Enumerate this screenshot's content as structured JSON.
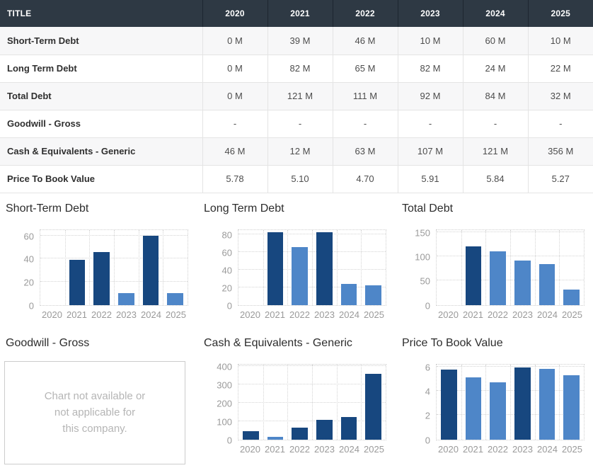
{
  "colors": {
    "header_bg": "#2e3944",
    "bar_dark": "#17477f",
    "bar_light": "#4e86c8",
    "row_alt": "#f7f7f8",
    "axis_text": "#9a9a9a",
    "na_text": "#b5b5b5"
  },
  "table": {
    "title_header": "TITLE",
    "year_headers": [
      "2020",
      "2021",
      "2022",
      "2023",
      "2024",
      "2025"
    ],
    "rows": [
      {
        "label": "Short-Term Debt",
        "values": [
          "0 M",
          "39 M",
          "46 M",
          "10 M",
          "60 M",
          "10 M"
        ]
      },
      {
        "label": "Long Term Debt",
        "values": [
          "0 M",
          "82 M",
          "65 M",
          "82 M",
          "24 M",
          "22 M"
        ]
      },
      {
        "label": "Total Debt",
        "values": [
          "0 M",
          "121 M",
          "111 M",
          "92 M",
          "84 M",
          "32 M"
        ]
      },
      {
        "label": "Goodwill - Gross",
        "values": [
          "-",
          "-",
          "-",
          "-",
          "-",
          "-"
        ]
      },
      {
        "label": "Cash & Equivalents - Generic",
        "values": [
          "46 M",
          "12 M",
          "63 M",
          "107 M",
          "121 M",
          "356 M"
        ]
      },
      {
        "label": "Price To Book Value",
        "values": [
          "5.78",
          "5.10",
          "4.70",
          "5.91",
          "5.84",
          "5.27"
        ]
      }
    ]
  },
  "chart_data": [
    {
      "type": "bar",
      "title": "Short-Term Debt",
      "available": true,
      "categories": [
        "2020",
        "2021",
        "2022",
        "2023",
        "2024",
        "2025"
      ],
      "values": [
        0,
        39,
        46,
        10,
        60,
        10
      ],
      "bar_colors": [
        null,
        "dark",
        "dark",
        "light",
        "dark",
        "light"
      ],
      "yticks": [
        0,
        20,
        40,
        60
      ],
      "ylim": [
        0,
        65
      ],
      "grid": true,
      "legend": false
    },
    {
      "type": "bar",
      "title": "Long Term Debt",
      "available": true,
      "categories": [
        "2020",
        "2021",
        "2022",
        "2023",
        "2024",
        "2025"
      ],
      "values": [
        0,
        82,
        65,
        82,
        24,
        22
      ],
      "bar_colors": [
        null,
        "dark",
        "light",
        "dark",
        "light",
        "light"
      ],
      "yticks": [
        0,
        20,
        40,
        60,
        80
      ],
      "ylim": [
        0,
        85
      ],
      "grid": true,
      "legend": false
    },
    {
      "type": "bar",
      "title": "Total Debt",
      "available": true,
      "categories": [
        "2020",
        "2021",
        "2022",
        "2023",
        "2024",
        "2025"
      ],
      "values": [
        0,
        121,
        111,
        92,
        84,
        32
      ],
      "bar_colors": [
        null,
        "dark",
        "light",
        "light",
        "light",
        "light"
      ],
      "yticks": [
        0,
        50,
        100,
        150
      ],
      "ylim": [
        0,
        155
      ],
      "grid": true,
      "legend": false
    },
    {
      "type": "bar",
      "title": "Goodwill - Gross",
      "available": false,
      "na_lines": [
        "Chart not available or",
        "not applicable for",
        "this company."
      ]
    },
    {
      "type": "bar",
      "title": "Cash & Equivalents - Generic",
      "available": true,
      "categories": [
        "2020",
        "2021",
        "2022",
        "2023",
        "2024",
        "2025"
      ],
      "values": [
        46,
        12,
        63,
        107,
        121,
        356
      ],
      "bar_colors": [
        "dark",
        "light",
        "dark",
        "dark",
        "dark",
        "dark"
      ],
      "yticks": [
        0,
        100,
        200,
        300,
        400
      ],
      "ylim": [
        0,
        410
      ],
      "grid": true,
      "legend": false
    },
    {
      "type": "bar",
      "title": "Price To Book Value",
      "available": true,
      "categories": [
        "2020",
        "2021",
        "2022",
        "2023",
        "2024",
        "2025"
      ],
      "values": [
        5.78,
        5.1,
        4.7,
        5.91,
        5.84,
        5.27
      ],
      "bar_colors": [
        "dark",
        "light",
        "light",
        "dark",
        "light",
        "light"
      ],
      "yticks": [
        0,
        2,
        4,
        6
      ],
      "ylim": [
        0,
        6.2
      ],
      "grid": true,
      "legend": false
    }
  ]
}
